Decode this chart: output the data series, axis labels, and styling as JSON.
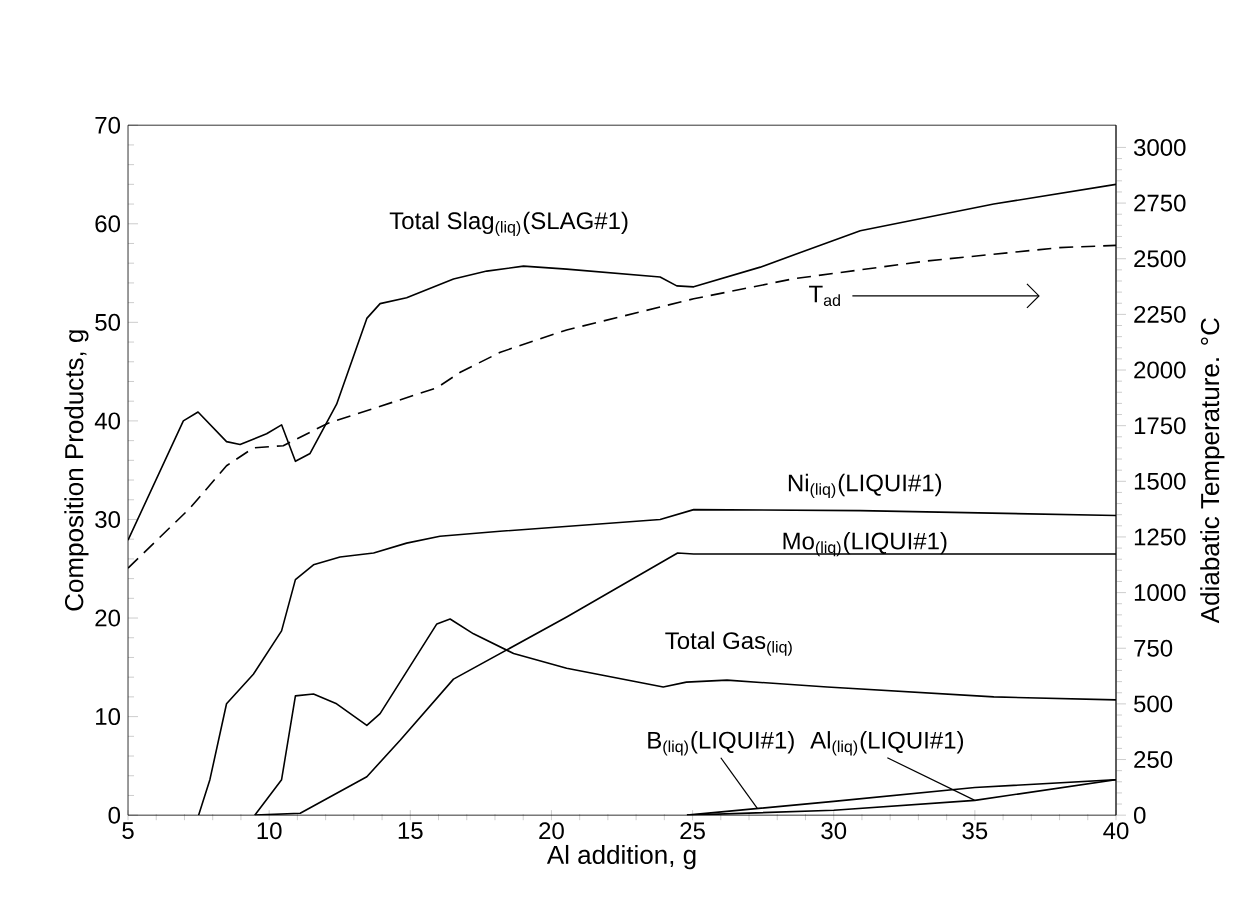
{
  "chart_data": {
    "type": "line",
    "xlabel": "Al addition, g",
    "ylabel": "Composition Products, g",
    "y2label": "Adiabatic Temperature. °C",
    "xlim": [
      5,
      40
    ],
    "xticks": [
      5,
      10,
      15,
      20,
      25,
      30,
      35,
      40
    ],
    "ylim": [
      0,
      70
    ],
    "yticks": [
      0,
      10,
      20,
      30,
      40,
      50,
      60,
      70
    ],
    "y2lim": [
      0,
      3100
    ],
    "y2ticks": [
      0,
      250,
      500,
      750,
      1000,
      1250,
      1500,
      1750,
      2000,
      2250,
      2500,
      2750,
      3000
    ],
    "line_style": "solid",
    "series": [
      {
        "name": "Total Slag$_{(liq)}$(SLAG#1)",
        "color": "#000000",
        "x": [
          5,
          6.96,
          7.48,
          8.49,
          8.97,
          9.91,
          10.44,
          10.93,
          11.45,
          12.39,
          13.46,
          13.93,
          14.87,
          16.53,
          17.71,
          19.01,
          20.54,
          23.85,
          24.44,
          25.04,
          27.4,
          30.94,
          35.67,
          40
        ],
        "values": [
          27.9,
          40.0,
          40.9,
          37.9,
          37.6,
          38.7,
          39.6,
          35.9,
          36.7,
          41.7,
          50.4,
          51.9,
          52.5,
          54.4,
          55.2,
          55.7,
          55.4,
          54.6,
          53.7,
          53.6,
          55.6,
          59.3,
          62.0,
          64.0
        ]
      },
      {
        "name": "T$_{ad}$",
        "color": "#000000",
        "axis": "y2",
        "line_style": "dashed",
        "x": [
          5,
          7.2,
          8.49,
          9.44,
          10.5,
          12.07,
          15.94,
          16.77,
          18.19,
          20.54,
          25.04,
          28.58,
          33.3,
          38.0,
          40
        ],
        "values": [
          1110,
          1380,
          1570,
          1650,
          1660,
          1760,
          1920,
          1990,
          2080,
          2180,
          2320,
          2410,
          2490,
          2550,
          2560
        ]
      },
      {
        "name": "Ni$_{(liq)}$(LIQUI#1)",
        "color": "#000000",
        "x": [
          7.5,
          7.9,
          8.49,
          9.44,
          10.44,
          10.93,
          11.57,
          12.51,
          13.7,
          14.87,
          16.05,
          18.18,
          23.85,
          25.04,
          30.94,
          40
        ],
        "values": [
          0,
          3.6,
          11.3,
          14.3,
          18.7,
          23.9,
          25.4,
          26.2,
          26.6,
          27.6,
          28.3,
          28.8,
          30.0,
          31.0,
          30.9,
          30.4
        ]
      },
      {
        "name": "Mo$_{(liq)}$(LIQUI#1)",
        "color": "#000000",
        "x": [
          9.49,
          11.1,
          13.46,
          14.64,
          16.53,
          20.54,
          24.47,
          25.04,
          40
        ],
        "values": [
          0,
          0.2,
          3.9,
          7.6,
          13.8,
          20.1,
          26.6,
          26.5,
          26.5
        ]
      },
      {
        "name": "Total Gas$_{(liq)}$",
        "color": "#000000",
        "x": [
          9.49,
          10.44,
          10.93,
          11.57,
          12.39,
          13.46,
          13.93,
          15.94,
          16.41,
          17.24,
          18.66,
          20.54,
          23.96,
          24.78,
          26.22,
          29.77,
          35.67,
          40
        ],
        "values": [
          0,
          3.6,
          12.1,
          12.3,
          11.3,
          9.1,
          10.3,
          19.4,
          19.9,
          18.4,
          16.4,
          14.9,
          13.0,
          13.5,
          13.7,
          13.0,
          12.0,
          11.7
        ]
      },
      {
        "name": "B$_{(liq)}$(LIQUI#1)",
        "color": "#000000",
        "x": [
          24.8,
          30,
          35,
          40
        ],
        "values": [
          0,
          1.4,
          2.8,
          3.6
        ]
      },
      {
        "name": "Al$_{(liq)}$(LIQUI#1)",
        "color": "#000000",
        "x": [
          24.8,
          30,
          35,
          40
        ],
        "values": [
          0,
          0.5,
          1.5,
          3.6
        ]
      }
    ]
  }
}
